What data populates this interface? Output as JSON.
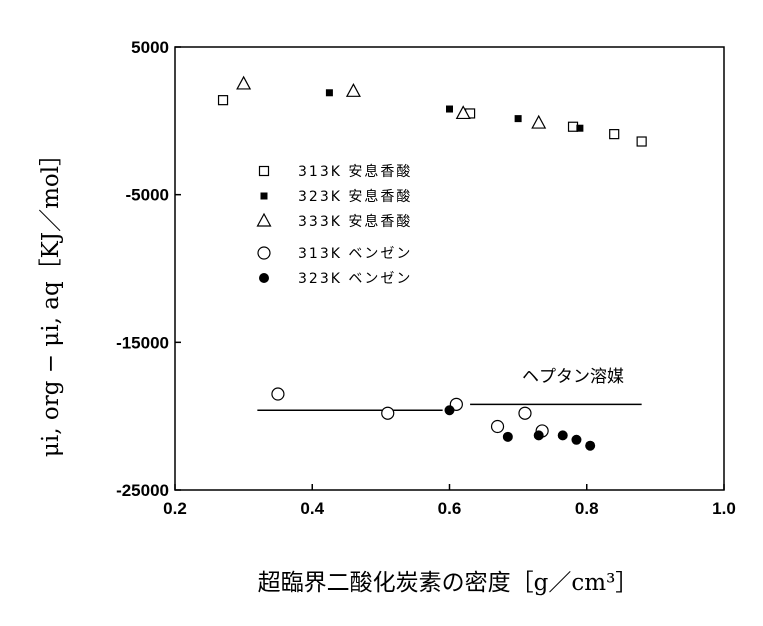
{
  "chart_data": {
    "type": "scatter",
    "xlabel": "超臨界二酸化炭素の密度［g／cm³］",
    "ylabel": "μi, org − μi, aq［KJ／mol］",
    "xlim": [
      0.2,
      1.0
    ],
    "ylim": [
      -25000,
      5000
    ],
    "x_ticks": [
      {
        "value": 0.2,
        "label": "0.2"
      },
      {
        "value": 0.4,
        "label": "0.4"
      },
      {
        "value": 0.6,
        "label": "0.6"
      },
      {
        "value": 0.8,
        "label": "0.8"
      },
      {
        "value": 1.0,
        "label": "1.0"
      }
    ],
    "y_ticks": [
      {
        "value": 5000,
        "label": "5000"
      },
      {
        "value": -5000,
        "label": "-5000"
      },
      {
        "value": -15000,
        "label": "-15000"
      },
      {
        "value": -25000,
        "label": "-25000"
      }
    ],
    "grid": false,
    "legend_position": "upper-left",
    "series": [
      {
        "name": "313K 安息香酸",
        "marker": "open-square",
        "points": [
          [
            0.27,
            1400
          ],
          [
            0.63,
            500
          ],
          [
            0.78,
            -400
          ],
          [
            0.84,
            -900
          ],
          [
            0.88,
            -1400
          ]
        ]
      },
      {
        "name": "323K 安息香酸",
        "marker": "filled-square",
        "points": [
          [
            0.425,
            1900
          ],
          [
            0.6,
            800
          ],
          [
            0.7,
            150
          ],
          [
            0.79,
            -500
          ]
        ]
      },
      {
        "name": "333K 安息香酸",
        "marker": "open-triangle",
        "points": [
          [
            0.3,
            2500
          ],
          [
            0.46,
            2000
          ],
          [
            0.62,
            500
          ],
          [
            0.73,
            -150
          ]
        ]
      },
      {
        "name": "313K ベンゼン",
        "marker": "open-circle",
        "points": [
          [
            0.35,
            -18500
          ],
          [
            0.51,
            -19800
          ],
          [
            0.61,
            -19200
          ],
          [
            0.67,
            -20700
          ],
          [
            0.71,
            -19800
          ],
          [
            0.735,
            -21000
          ]
        ]
      },
      {
        "name": "323K ベンゼン",
        "marker": "filled-circle",
        "points": [
          [
            0.6,
            -19600
          ],
          [
            0.685,
            -21400
          ],
          [
            0.73,
            -21300
          ],
          [
            0.765,
            -21300
          ],
          [
            0.785,
            -21600
          ],
          [
            0.805,
            -22000
          ]
        ]
      }
    ],
    "reference_lines": [
      {
        "x": [
          0.32,
          0.59
        ],
        "y": [
          -19600,
          -19600
        ]
      },
      {
        "x": [
          0.63,
          0.88
        ],
        "y": [
          -19200,
          -19200
        ]
      }
    ],
    "annotations": [
      {
        "text": "ヘプタン溶媒",
        "x": 0.78,
        "y": -17700
      }
    ]
  }
}
